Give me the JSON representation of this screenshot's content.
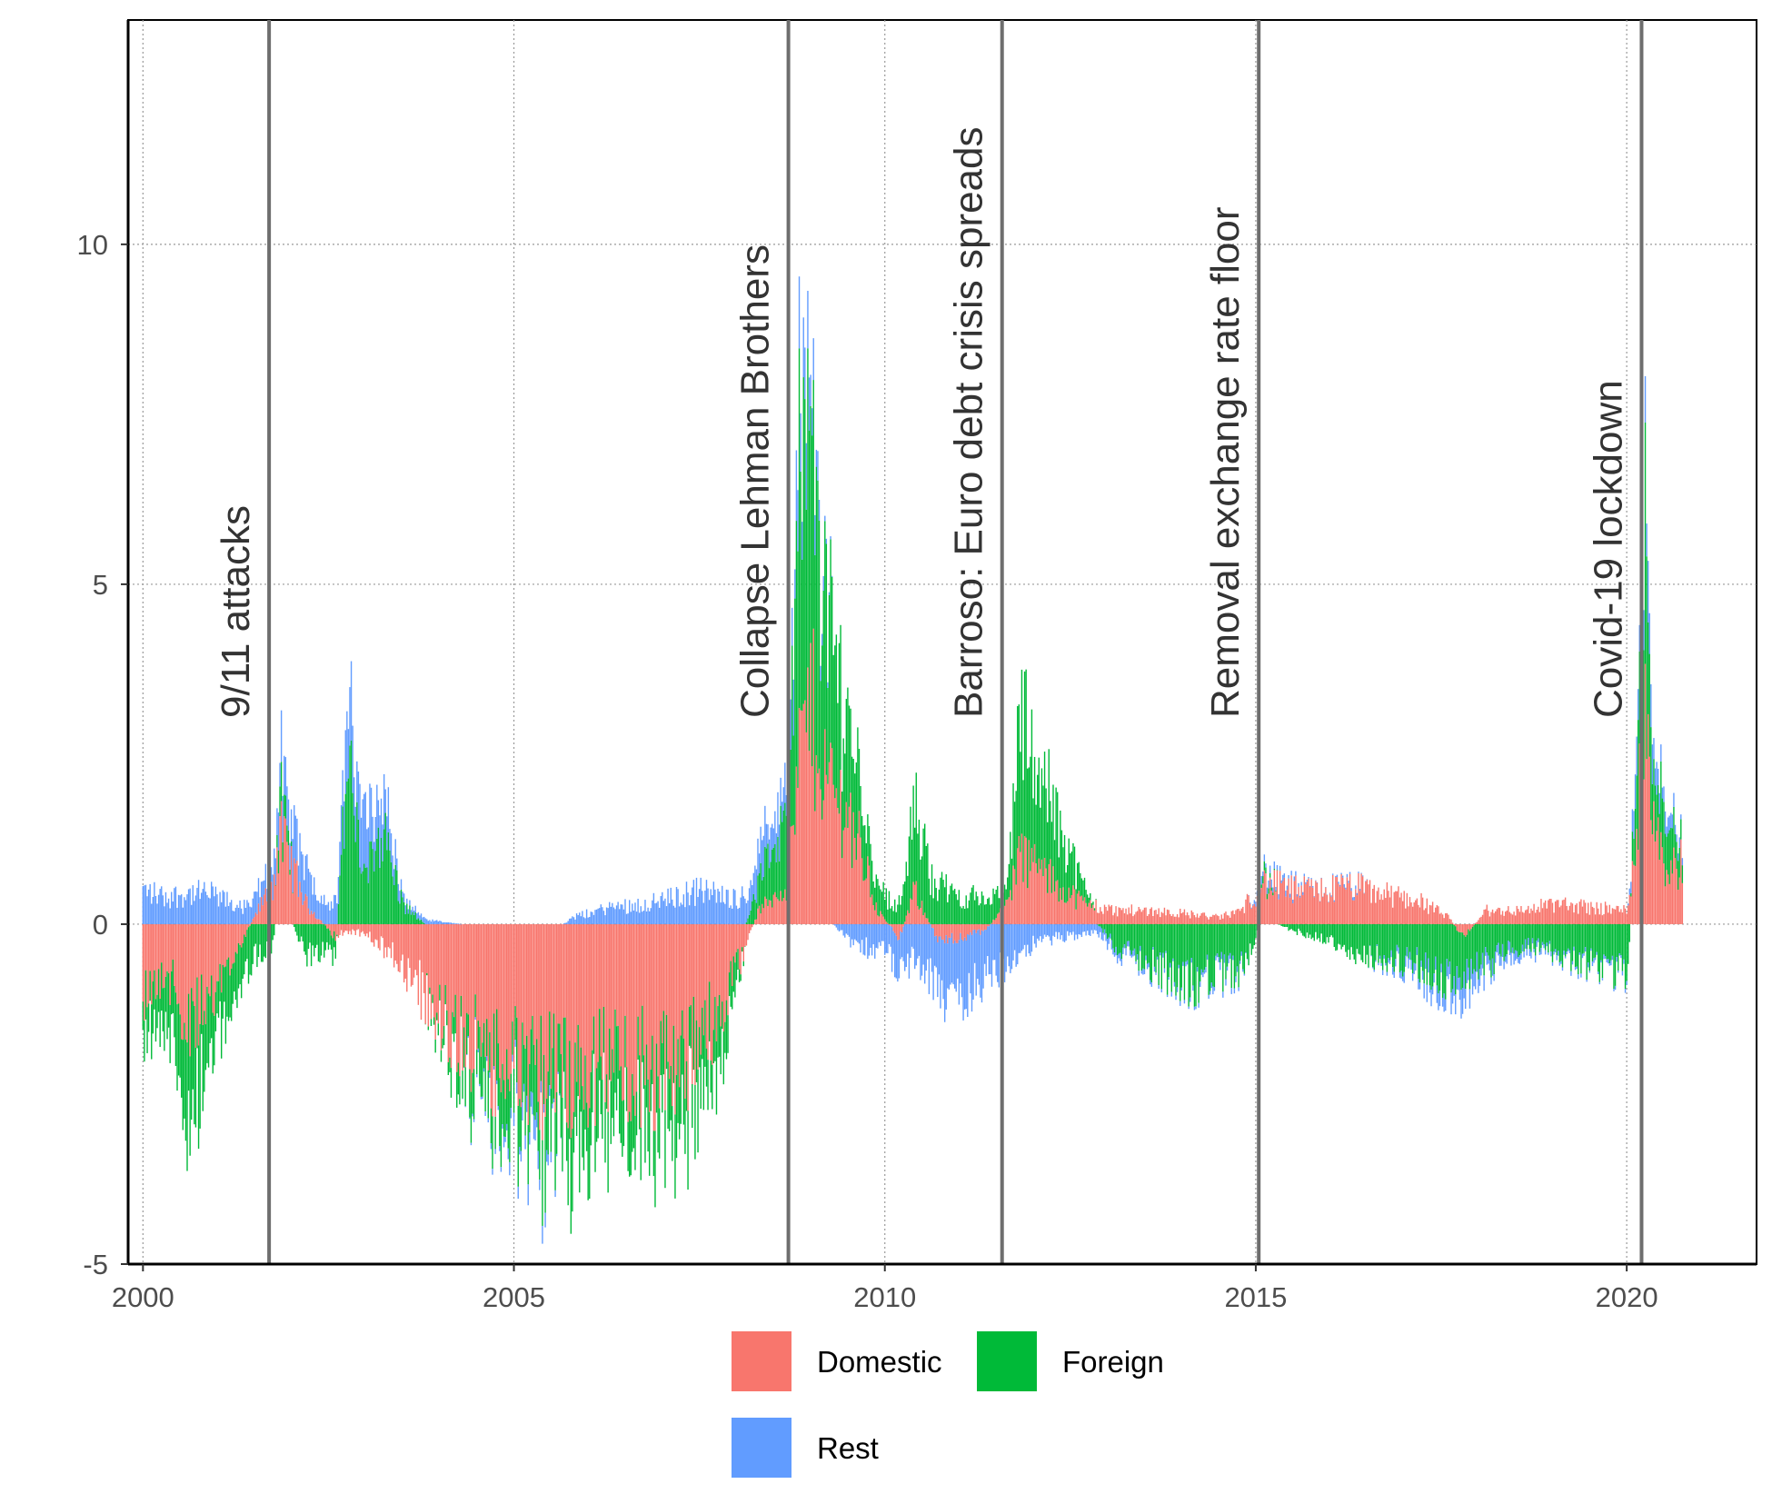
{
  "chart_data": {
    "type": "bar",
    "stacked": true,
    "x_axis": {
      "range": [
        1999.8,
        2021.75
      ],
      "ticks": [
        2000,
        2005,
        2010,
        2015,
        2020
      ],
      "tick_labels": [
        "2000",
        "2005",
        "2010",
        "2015",
        "2020"
      ]
    },
    "y_axis": {
      "range": [
        -5,
        13.3
      ],
      "ticks": [
        -5,
        0,
        5,
        10
      ],
      "tick_labels": [
        "-5",
        "0",
        "5",
        "10"
      ]
    },
    "grid": true,
    "legend": {
      "position": "bottom",
      "entries": [
        {
          "key": "domestic",
          "label": "Domestic",
          "color": "#F8766D"
        },
        {
          "key": "foreign",
          "label": "Foreign",
          "color": "#00BA38"
        },
        {
          "key": "rest",
          "label": "Rest",
          "color": "#619CFF"
        }
      ]
    },
    "events": [
      {
        "date": 2001.7,
        "label": "9/11 attacks"
      },
      {
        "date": 2008.7,
        "label": "Collapse Lehman Brothers"
      },
      {
        "date": 2011.58,
        "label": "Barroso: Euro debt crisis spreads"
      },
      {
        "date": 2015.04,
        "label": "Removal exchange rate floor"
      },
      {
        "date": 2020.2,
        "label": "Covid-19 lockdown"
      }
    ],
    "series_keypoints": {
      "date": [
        2000.0,
        2000.3,
        2000.65,
        2000.9,
        2001.3,
        2001.75,
        2001.85,
        2002.2,
        2002.6,
        2002.75,
        2003.0,
        2003.2,
        2003.5,
        2003.9,
        2004.3,
        2004.8,
        2005.3,
        2005.8,
        2006.3,
        2006.8,
        2007.2,
        2007.5,
        2007.9,
        2008.3,
        2008.7,
        2008.85,
        2009.0,
        2009.2,
        2009.6,
        2009.9,
        2010.2,
        2010.4,
        2010.7,
        2011.0,
        2011.35,
        2011.65,
        2011.8,
        2012.0,
        2012.3,
        2012.7,
        2013.1,
        2013.6,
        2014.1,
        2014.5,
        2014.8,
        2015.1,
        2015.5,
        2015.9,
        2016.3,
        2016.7,
        2017.2,
        2017.6,
        2017.8,
        2018.1,
        2018.6,
        2019.0,
        2019.5,
        2020.0,
        2020.15,
        2020.25,
        2020.35,
        2020.55,
        2020.75
      ],
      "domestic": [
        -1.0,
        -0.7,
        -1.5,
        -1.2,
        -0.3,
        0.6,
        1.3,
        0.3,
        -0.2,
        -0.1,
        -0.15,
        -0.3,
        -0.6,
        -1.2,
        -1.7,
        -2.1,
        -2.3,
        -2.2,
        -2.0,
        -2.2,
        -2.1,
        -1.8,
        -1.0,
        0.2,
        0.6,
        2.5,
        3.2,
        2.2,
        1.4,
        0.2,
        -0.2,
        0.5,
        -0.2,
        -0.2,
        -0.1,
        0.3,
        1.0,
        0.9,
        0.6,
        0.3,
        0.2,
        0.2,
        0.15,
        0.1,
        0.2,
        0.6,
        0.5,
        0.5,
        0.55,
        0.45,
        0.35,
        0.1,
        -0.2,
        0.2,
        0.2,
        0.3,
        0.25,
        0.2,
        1.5,
        3.5,
        1.8,
        0.8,
        0.9
      ],
      "foreign": [
        -0.5,
        -0.8,
        -1.4,
        -0.9,
        -0.7,
        -0.3,
        0.5,
        -0.5,
        -0.3,
        2.3,
        0.6,
        1.5,
        0.3,
        -0.1,
        -0.5,
        -0.8,
        -1.0,
        -1.0,
        -0.9,
        -0.8,
        -0.9,
        -1.0,
        -0.6,
        0.5,
        1.0,
        4.0,
        3.7,
        2.4,
        1.2,
        0.4,
        0.3,
        1.2,
        0.6,
        0.4,
        0.4,
        0.2,
        2.0,
        1.6,
        1.0,
        0.2,
        -0.3,
        -0.6,
        -0.9,
        -0.7,
        -0.7,
        0.1,
        -0.1,
        -0.2,
        -0.4,
        -0.5,
        -0.6,
        -0.8,
        -0.6,
        -0.6,
        -0.3,
        -0.4,
        -0.6,
        -0.7,
        1.3,
        2.7,
        1.0,
        0.6,
        0.3
      ],
      "rest": [
        0.5,
        0.4,
        0.45,
        0.45,
        0.25,
        0.3,
        0.6,
        0.5,
        0.3,
        0.8,
        0.9,
        0.7,
        0.1,
        0.05,
        0.0,
        -0.1,
        -0.25,
        0.1,
        0.25,
        0.3,
        0.4,
        0.5,
        0.4,
        0.4,
        0.5,
        0.9,
        0.6,
        0.1,
        -0.3,
        -0.4,
        -0.5,
        -0.6,
        -0.8,
        -0.9,
        -0.8,
        -0.6,
        -0.45,
        -0.3,
        -0.2,
        -0.15,
        -0.1,
        -0.05,
        -0.05,
        -0.1,
        -0.05,
        0.1,
        0.05,
        0.0,
        0.05,
        -0.05,
        -0.15,
        -0.25,
        -0.3,
        -0.2,
        -0.1,
        -0.05,
        -0.05,
        -0.05,
        0.5,
        0.8,
        0.4,
        0.2,
        0.1
      ]
    }
  }
}
